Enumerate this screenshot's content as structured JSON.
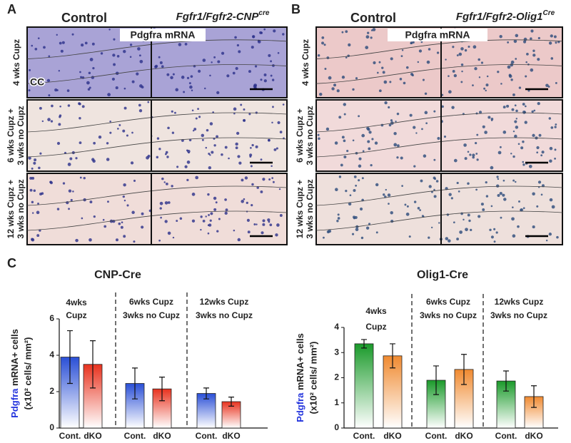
{
  "panel_a": {
    "label": "A",
    "control": "Control",
    "mutant": "Fgfr1/Fgfr2-CNP",
    "mutant_sup": "cre",
    "probe": "Pdgfra mRNA",
    "region": "CC",
    "rows": [
      [
        "4 wks Cupz"
      ],
      [
        "6 wks Cupz +",
        "3 wks no Cupz"
      ],
      [
        "12 wks Cupz +",
        "3 wks no Cupz"
      ]
    ]
  },
  "panel_b": {
    "label": "B",
    "control": "Control",
    "mutant": "Fgfr1/Fgfr2-Olig1",
    "mutant_sup": "Cre",
    "probe": "Pdgfra mRNA",
    "rows": [
      [
        "4 wks Cupz"
      ],
      [
        "6 wks Cupz +",
        "3 wks no Cupz"
      ],
      [
        "12 wks Cupz +",
        "3 wks no Cupz"
      ]
    ]
  },
  "panel_c_label": "C",
  "chart_data": [
    {
      "type": "bar",
      "title": "CNP-Cre",
      "ylabel_gene": "Pdgfra",
      "ylabel": "mRNA+ cells",
      "ylabel_units": "(x10² cells/ mm²)",
      "categories": [
        [
          "4wks",
          "Cupz"
        ],
        [
          "6wks Cupz",
          "3wks no Cupz"
        ],
        [
          "12wks Cupz",
          "3wks no Cupz"
        ]
      ],
      "ylim": [
        0,
        6
      ],
      "yticks": [
        0,
        2,
        4,
        6
      ],
      "series": [
        {
          "name": "Cont.",
          "color": "#2a4fd6",
          "values": [
            3.9,
            2.45,
            1.9
          ],
          "errors": [
            1.45,
            0.85,
            0.3
          ]
        },
        {
          "name": "dKO",
          "color": "#e8321e",
          "values": [
            3.5,
            2.15,
            1.45
          ],
          "errors": [
            1.3,
            0.65,
            0.25
          ]
        }
      ]
    },
    {
      "type": "bar",
      "title": "Olig1-Cre",
      "ylabel_gene": "Pdgfra",
      "ylabel": "mRNA+ cells",
      "ylabel_units": "(x10² cells/ mm²)",
      "categories": [
        [
          "4wks",
          "Cupz"
        ],
        [
          "6wks Cupz",
          "3wks no Cupz"
        ],
        [
          "12wks Cupz",
          "3wks no Cupz"
        ]
      ],
      "ylim": [
        0,
        4
      ],
      "yticks": [
        0,
        1,
        2,
        3,
        4
      ],
      "series": [
        {
          "name": "Cont.",
          "color": "#1a9a2a",
          "values": [
            3.35,
            1.9,
            1.87
          ],
          "errors": [
            0.17,
            0.57,
            0.4
          ]
        },
        {
          "name": "dKO",
          "color": "#f08a30",
          "values": [
            2.87,
            2.33,
            1.25
          ],
          "errors": [
            0.48,
            0.6,
            0.43
          ]
        }
      ]
    }
  ]
}
